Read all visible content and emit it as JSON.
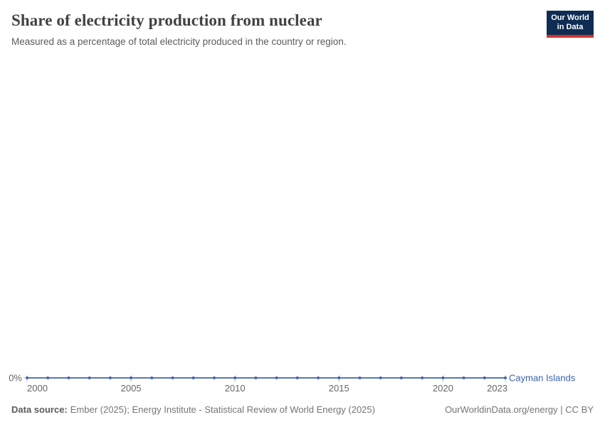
{
  "header": {
    "title": "Share of electricity production from nuclear",
    "subtitle": "Measured as a percentage of total electricity produced in the country or region.",
    "logo": {
      "line1": "Our World",
      "line2": "in Data"
    }
  },
  "chart_data": {
    "type": "line",
    "title": "Share of electricity production from nuclear",
    "xlabel": "",
    "ylabel": "",
    "x_range": [
      2000,
      2023
    ],
    "x_ticks": [
      2000,
      2005,
      2010,
      2015,
      2020,
      2023
    ],
    "y_tick_labels": [
      "0%"
    ],
    "grid": false,
    "legend_position": "end-of-line",
    "series": [
      {
        "name": "Cayman Islands",
        "color": "#4166ab",
        "x": [
          2000,
          2001,
          2002,
          2003,
          2004,
          2005,
          2006,
          2007,
          2008,
          2009,
          2010,
          2011,
          2012,
          2013,
          2014,
          2015,
          2016,
          2017,
          2018,
          2019,
          2020,
          2021,
          2022,
          2023
        ],
        "values": [
          0,
          0,
          0,
          0,
          0,
          0,
          0,
          0,
          0,
          0,
          0,
          0,
          0,
          0,
          0,
          0,
          0,
          0,
          0,
          0,
          0,
          0,
          0,
          0
        ]
      }
    ]
  },
  "footer": {
    "source_label": "Data source:",
    "source_text": "Ember (2025); Energy Institute - Statistical Review of World Energy (2025)",
    "link_text": "OurWorldinData.org/energy | CC BY"
  },
  "colors": {
    "line": "#4166ab",
    "entity_label": "#3a63a9",
    "tick": "#bac3d5",
    "axis_text": "#666666",
    "logo_bg": "#0f2d52",
    "logo_bar": "#d1322e"
  }
}
